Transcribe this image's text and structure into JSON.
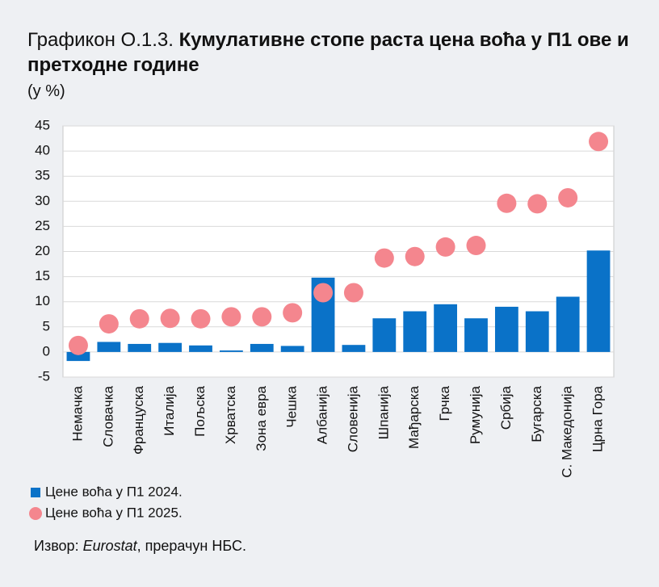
{
  "chart_data": {
    "type": "bar",
    "title_prefix": "Графикон О.1.3.",
    "title": "Кумулативне стопе раста цена воћа у П1 ове и претходне године",
    "y_label": "(у %)",
    "categories": [
      "Немачка",
      "Словачка",
      "Француска",
      "Италија",
      "Пољска",
      "Хрватска",
      "Зона евра",
      "Чешка",
      "Албанија",
      "Словенија",
      "Шпанија",
      "Мађарска",
      "Грчка",
      "Румунија",
      "Србија",
      "Бугарска",
      "С. Македонија",
      "Црна Гора"
    ],
    "series": [
      {
        "name": "Цене воћа у П1 2024.",
        "type": "bar",
        "color": "#0a72c8",
        "values": [
          -1.8,
          2.0,
          1.6,
          1.8,
          1.3,
          0.3,
          1.6,
          1.2,
          14.8,
          1.4,
          6.7,
          8.1,
          9.5,
          6.7,
          9.0,
          8.1,
          11.0,
          20.2
        ]
      },
      {
        "name": "Цене воћа у П1 2025.",
        "type": "scatter",
        "color": "#f4868e",
        "values": [
          1.3,
          5.6,
          6.6,
          6.7,
          6.6,
          7.0,
          7.0,
          7.8,
          11.8,
          11.8,
          18.7,
          19.0,
          20.9,
          21.2,
          29.6,
          29.5,
          30.7,
          41.9
        ]
      }
    ],
    "ylim": [
      -5,
      45
    ],
    "yticks": [
      -5,
      0,
      5,
      10,
      15,
      20,
      25,
      30,
      35,
      40,
      45
    ],
    "grid": true,
    "source": {
      "prefix": "Извор:",
      "italic": "Eurostat",
      "suffix": ", прерачун НБС."
    }
  }
}
